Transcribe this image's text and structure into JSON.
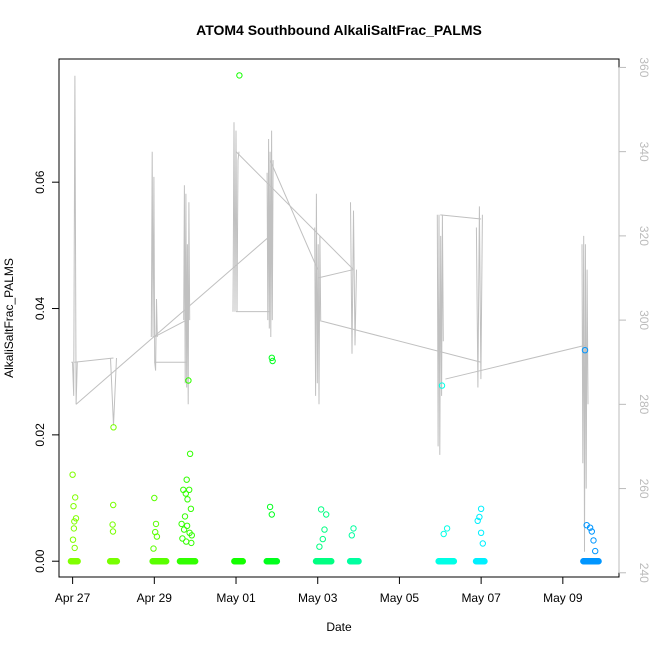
{
  "chart_data": {
    "type": "scatter",
    "title": "ATOM4 Southbound AlkaliSaltFrac_PALMS",
    "xlabel": "Date",
    "ylabel": "AlkaliSaltFrac_PALMS",
    "y2label": "",
    "xlim": [
      "2017-04-26T16:00",
      "2017-05-10T09:00"
    ],
    "ylim": [
      -0.0025,
      0.0795
    ],
    "y2lim": [
      239,
      362
    ],
    "x_ticks": [
      {
        "date": "2017-04-27",
        "label": "Apr 27"
      },
      {
        "date": "2017-04-29",
        "label": "Apr 29"
      },
      {
        "date": "2017-05-01",
        "label": "May 01"
      },
      {
        "date": "2017-05-03",
        "label": "May 03"
      },
      {
        "date": "2017-05-05",
        "label": "May 05"
      },
      {
        "date": "2017-05-07",
        "label": "May 07"
      },
      {
        "date": "2017-05-09",
        "label": "May 09"
      }
    ],
    "y_ticks": [
      "0.00",
      "0.02",
      "0.04",
      "0.06"
    ],
    "y2_ticks": [
      "240",
      "260",
      "280",
      "300",
      "320",
      "340",
      "360"
    ],
    "grid": false,
    "legend": "none",
    "series": [
      {
        "role": "points",
        "values": [
          {
            "x": "2017-04-27T00:00",
            "y": 0.0137,
            "color": "#80ff00"
          },
          {
            "x": "2017-04-27T00:30",
            "y": 0.0087,
            "color": "#80ff00"
          },
          {
            "x": "2017-04-27T01:00",
            "y": 0.0063,
            "color": "#80ff00"
          },
          {
            "x": "2017-04-27T01:30",
            "y": 0.0101,
            "color": "#80ff00"
          },
          {
            "x": "2017-04-27T00:45",
            "y": 0.0052,
            "color": "#80ff00"
          },
          {
            "x": "2017-04-27T00:15",
            "y": 0.0034,
            "color": "#80ff00"
          },
          {
            "x": "2017-04-27T01:15",
            "y": 0.0021,
            "color": "#80ff00"
          },
          {
            "x": "2017-04-27T02:00",
            "y": 0.0068,
            "color": "#80ff00"
          },
          {
            "x": "2017-04-28T00:00",
            "y": 0.0212,
            "color": "#78ff00"
          },
          {
            "x": "2017-04-27T23:50",
            "y": 0.0089,
            "color": "#78ff00"
          },
          {
            "x": "2017-04-27T23:30",
            "y": 0.0058,
            "color": "#78ff00"
          },
          {
            "x": "2017-04-27T23:45",
            "y": 0.0047,
            "color": "#78ff00"
          },
          {
            "x": "2017-04-29T00:00",
            "y": 0.01,
            "color": "#5aff00"
          },
          {
            "x": "2017-04-29T01:00",
            "y": 0.0059,
            "color": "#5aff00"
          },
          {
            "x": "2017-04-29T00:30",
            "y": 0.0046,
            "color": "#5aff00"
          },
          {
            "x": "2017-04-29T01:30",
            "y": 0.0039,
            "color": "#5aff00"
          },
          {
            "x": "2017-04-28T23:30",
            "y": 0.002,
            "color": "#5aff00"
          },
          {
            "x": "2017-04-29T20:00",
            "y": 0.0286,
            "color": "#32ff00"
          },
          {
            "x": "2017-04-29T21:00",
            "y": 0.017,
            "color": "#32ff00"
          },
          {
            "x": "2017-04-29T19:00",
            "y": 0.0129,
            "color": "#32ff00"
          },
          {
            "x": "2017-04-29T17:00",
            "y": 0.0113,
            "color": "#32ff00"
          },
          {
            "x": "2017-04-29T20:30",
            "y": 0.0113,
            "color": "#32ff00"
          },
          {
            "x": "2017-04-29T18:30",
            "y": 0.0107,
            "color": "#32ff00"
          },
          {
            "x": "2017-04-29T19:30",
            "y": 0.0098,
            "color": "#32ff00"
          },
          {
            "x": "2017-04-29T21:30",
            "y": 0.0083,
            "color": "#32ff00"
          },
          {
            "x": "2017-04-29T18:00",
            "y": 0.0071,
            "color": "#32ff00"
          },
          {
            "x": "2017-04-29T16:00",
            "y": 0.0059,
            "color": "#32ff00"
          },
          {
            "x": "2017-04-29T19:15",
            "y": 0.0056,
            "color": "#32ff00"
          },
          {
            "x": "2017-04-29T17:30",
            "y": 0.005,
            "color": "#32ff00"
          },
          {
            "x": "2017-04-29T20:45",
            "y": 0.0045,
            "color": "#32ff00"
          },
          {
            "x": "2017-04-29T22:00",
            "y": 0.0041,
            "color": "#32ff00"
          },
          {
            "x": "2017-04-29T16:30",
            "y": 0.0036,
            "color": "#32ff00"
          },
          {
            "x": "2017-04-29T18:45",
            "y": 0.0031,
            "color": "#32ff00"
          },
          {
            "x": "2017-04-29T21:45",
            "y": 0.0029,
            "color": "#32ff00"
          },
          {
            "x": "2017-05-01T02:00",
            "y": 0.0769,
            "color": "#14ff00"
          },
          {
            "x": "2017-05-01T21:00",
            "y": 0.0322,
            "color": "#00ff1e"
          },
          {
            "x": "2017-05-01T21:30",
            "y": 0.0317,
            "color": "#00ff1e"
          },
          {
            "x": "2017-05-01T20:00",
            "y": 0.0086,
            "color": "#00ff1e"
          },
          {
            "x": "2017-05-01T21:00",
            "y": 0.0074,
            "color": "#00ff1e"
          },
          {
            "x": "2017-05-03T02:00",
            "y": 0.0082,
            "color": "#00ff82"
          },
          {
            "x": "2017-05-03T05:00",
            "y": 0.0074,
            "color": "#00ff82"
          },
          {
            "x": "2017-05-03T04:00",
            "y": 0.005,
            "color": "#00ff82"
          },
          {
            "x": "2017-05-03T03:00",
            "y": 0.0035,
            "color": "#00ff82"
          },
          {
            "x": "2017-05-03T01:00",
            "y": 0.0023,
            "color": "#00ff82"
          },
          {
            "x": "2017-05-03T21:00",
            "y": 0.0052,
            "color": "#00ffa0"
          },
          {
            "x": "2017-05-03T20:00",
            "y": 0.0041,
            "color": "#00ffa0"
          },
          {
            "x": "2017-05-06T01:00",
            "y": 0.0278,
            "color": "#00ffe6"
          },
          {
            "x": "2017-05-06T04:00",
            "y": 0.0052,
            "color": "#00ffe6"
          },
          {
            "x": "2017-05-06T02:00",
            "y": 0.0043,
            "color": "#00ffe6"
          },
          {
            "x": "2017-05-07T00:00",
            "y": 0.0083,
            "color": "#00f0ff"
          },
          {
            "x": "2017-05-06T23:00",
            "y": 0.007,
            "color": "#00f0ff"
          },
          {
            "x": "2017-05-06T22:00",
            "y": 0.0064,
            "color": "#00f0ff"
          },
          {
            "x": "2017-05-07T00:00",
            "y": 0.0045,
            "color": "#00f0ff"
          },
          {
            "x": "2017-05-07T01:00",
            "y": 0.0028,
            "color": "#00f0ff"
          },
          {
            "x": "2017-05-09T13:00",
            "y": 0.0334,
            "color": "#0096ff"
          },
          {
            "x": "2017-05-09T14:00",
            "y": 0.0057,
            "color": "#0096ff"
          },
          {
            "x": "2017-05-09T16:00",
            "y": 0.0053,
            "color": "#0096ff"
          },
          {
            "x": "2017-05-09T17:00",
            "y": 0.0047,
            "color": "#0096ff"
          },
          {
            "x": "2017-05-09T18:00",
            "y": 0.0033,
            "color": "#0096ff"
          },
          {
            "x": "2017-05-09T19:00",
            "y": 0.0016,
            "color": "#0096ff"
          }
        ],
        "zero_clusters": [
          {
            "start": "2017-04-26T23:00",
            "end": "2017-04-27T03:00",
            "color": "#80ff00"
          },
          {
            "start": "2017-04-27T22:00",
            "end": "2017-04-28T02:00",
            "color": "#78ff00"
          },
          {
            "start": "2017-04-28T23:00",
            "end": "2017-04-29T07:00",
            "color": "#5aff00"
          },
          {
            "start": "2017-04-29T15:00",
            "end": "2017-04-30T00:00",
            "color": "#32ff00"
          },
          {
            "start": "2017-04-30T23:00",
            "end": "2017-05-01T04:00",
            "color": "#14ff00"
          },
          {
            "start": "2017-05-01T18:00",
            "end": "2017-05-02T00:00",
            "color": "#00ff1e"
          },
          {
            "start": "2017-05-02T23:00",
            "end": "2017-05-03T08:00",
            "color": "#00ff82"
          },
          {
            "start": "2017-05-03T19:00",
            "end": "2017-05-04T00:00",
            "color": "#00ffa0"
          },
          {
            "start": "2017-05-05T23:00",
            "end": "2017-05-06T08:00",
            "color": "#00ffe6"
          },
          {
            "start": "2017-05-06T21:00",
            "end": "2017-05-07T02:00",
            "color": "#00f0ff"
          },
          {
            "start": "2017-05-09T12:00",
            "end": "2017-05-09T21:00",
            "color": "#0096ff"
          }
        ]
      },
      {
        "role": "line",
        "axis": "right",
        "color": "#c0c0c0",
        "segments": [
          {
            "x": "2017-04-27T01:00",
            "y": [
              290,
              290,
              282,
              358,
              280,
              290
            ]
          },
          {
            "x": "2017-04-28T00:00",
            "y": [
              291,
              275,
              291
            ]
          },
          {
            "x": "2017-04-29T00:00",
            "y": [
              296,
              340,
              296,
              334,
              290,
              288,
              305,
              296
            ]
          },
          {
            "x": "2017-04-29T19:00",
            "y": [
              300,
              332,
              285,
              330,
              284,
              318,
              280,
              328,
              300
            ]
          },
          {
            "x": "2017-05-01T00:00",
            "y": [
              302,
              347,
              302,
              345,
              302,
              338,
              340
            ]
          },
          {
            "x": "2017-05-01T20:00",
            "y": [
              335,
              300,
              343,
              298,
              340,
              296,
              345,
              300,
              338
            ]
          },
          {
            "x": "2017-05-03T00:00",
            "y": [
              322,
              282,
              330,
              285,
              318,
              280,
              320,
              300
            ]
          },
          {
            "x": "2017-05-03T21:00",
            "y": [
              328,
              292,
              326,
              294,
              312
            ]
          },
          {
            "x": "2017-05-06T00:00",
            "y": [
              325,
              270,
              325,
              268,
              320,
              282,
              325,
              295
            ]
          },
          {
            "x": "2017-05-06T23:00",
            "y": [
              322,
              284,
              327,
              286,
              325
            ]
          },
          {
            "x": "2017-05-09T13:00",
            "y": [
              318,
              266,
              320,
              245,
              318,
              260,
              312,
              280
            ]
          }
        ],
        "connectors": [
          {
            "x": [
              "2017-04-27T01:00",
              "2017-04-28T00:00"
            ],
            "y": [
              290,
              291
            ]
          },
          {
            "x": [
              "2017-04-27T02:00",
              "2017-05-01T20:00"
            ],
            "y": [
              280,
              320
            ]
          },
          {
            "x": [
              "2017-04-29T00:00",
              "2017-04-29T19:00"
            ],
            "y": [
              290,
              290
            ]
          },
          {
            "x": [
              "2017-04-29T00:00",
              "2017-04-29T19:00"
            ],
            "y": [
              296,
              300
            ]
          },
          {
            "x": [
              "2017-05-01T00:00",
              "2017-05-01T20:00"
            ],
            "y": [
              302,
              302
            ]
          },
          {
            "x": [
              "2017-05-01T00:00",
              "2017-05-03T21:00"
            ],
            "y": [
              340,
              312
            ]
          },
          {
            "x": [
              "2017-05-01T20:00",
              "2017-05-03T00:00"
            ],
            "y": [
              338,
              312
            ]
          },
          {
            "x": [
              "2017-05-03T00:00",
              "2017-05-03T21:00"
            ],
            "y": [
              310,
              312
            ]
          },
          {
            "x": [
              "2017-05-03T00:00",
              "2017-05-07T00:00"
            ],
            "y": [
              300,
              290
            ]
          },
          {
            "x": [
              "2017-05-06T00:00",
              "2017-05-07T00:00"
            ],
            "y": [
              325,
              324
            ]
          },
          {
            "x": [
              "2017-05-06T03:00",
              "2017-05-09T13:00"
            ],
            "y": [
              286,
              294
            ]
          }
        ]
      }
    ]
  }
}
